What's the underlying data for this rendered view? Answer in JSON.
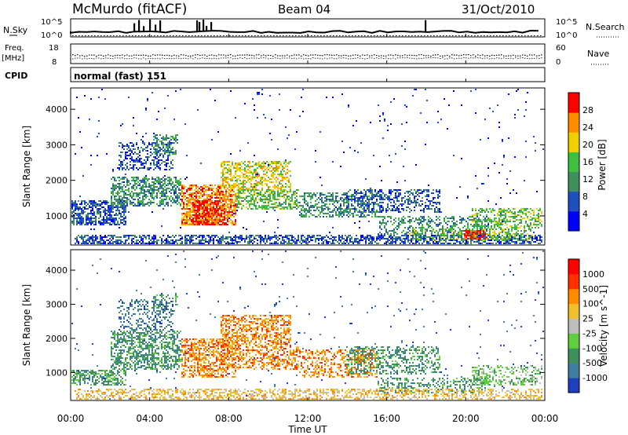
{
  "header": {
    "station": "McMurdo (fitACF)",
    "beam": "Beam 04",
    "date": "31/Oct/2010",
    "cpid_label": "CPID",
    "cpid_value": "normal (fast) 151"
  },
  "top_panels": {
    "nsky_label": "N.Sky",
    "nsearch_label": "N.Search",
    "nsky_ticks": [
      "10^5",
      "10^0"
    ],
    "nsearch_ticks": [
      "10^5",
      "10^0"
    ],
    "freq_label": "Freq.",
    "freq_unit": "[MHz]",
    "freq_ticks": [
      "18",
      "8"
    ],
    "nave_label": "Nave",
    "nave_ticks": [
      "60",
      "0"
    ]
  },
  "chart_data": [
    {
      "type": "heatmap",
      "name": "power",
      "ylabel": "Slant Range [km]",
      "yticks": [
        "4000",
        "3000",
        "2000",
        "1000"
      ],
      "ylim": [
        180,
        4600
      ],
      "colorbar": {
        "label": "Power [dB]",
        "ticks": [
          "28",
          "24",
          "20",
          "16",
          "12",
          "8",
          "4"
        ],
        "colors": [
          "#0000ff",
          "#1f4fbf",
          "#3f8f5f",
          "#3fbf3f",
          "#f0d000",
          "#ff8c00",
          "#ff0000"
        ]
      }
    },
    {
      "type": "heatmap",
      "name": "velocity",
      "ylabel": "Slant Range [km]",
      "yticks": [
        "4000",
        "3000",
        "2000",
        "1000"
      ],
      "ylim": [
        180,
        4600
      ],
      "colorbar": {
        "label": "Velocity [m s^-1]",
        "ticks": [
          "1000",
          "500",
          "100",
          "25",
          "-25",
          "-100",
          "-500",
          "-1000"
        ],
        "colors": [
          "#1f3fbf",
          "#3f7f9f",
          "#3f8f5f",
          "#5fcf3f",
          "#bebebe",
          "#f0c030",
          "#ff8c00",
          "#ff3000",
          "#ff0000"
        ]
      }
    }
  ],
  "x_axis": {
    "label": "Time UT",
    "ticks": [
      "00:00",
      "04:00",
      "08:00",
      "12:00",
      "16:00",
      "20:00",
      "00:00"
    ]
  }
}
